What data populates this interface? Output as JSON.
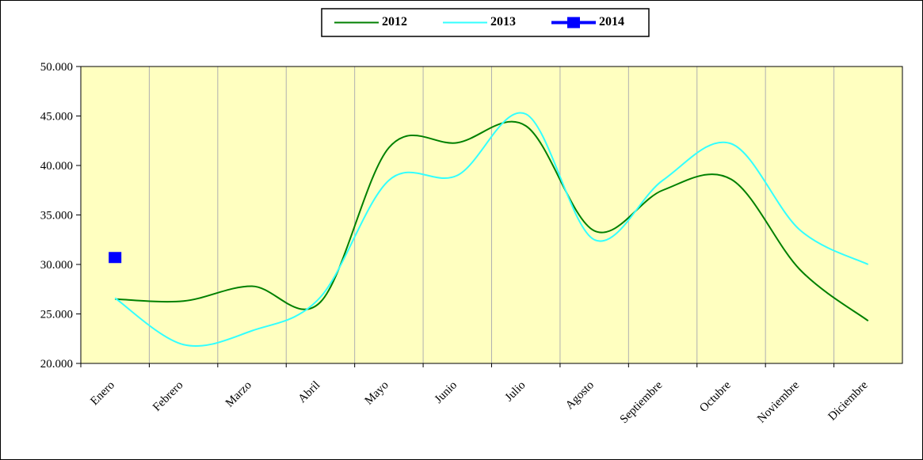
{
  "chart_data": {
    "type": "line",
    "categories": [
      "Enero",
      "Febrero",
      "Marzo",
      "Abril",
      "Mayo",
      "Junio",
      "Julio",
      "Agosto",
      "Septiembre",
      "Octubre",
      "Noviembre",
      "Diciembre"
    ],
    "series": [
      {
        "name": "2012",
        "color": "#008000",
        "values": [
          26500,
          26300,
          27800,
          26200,
          41800,
          42300,
          44000,
          33400,
          37500,
          38600,
          29500,
          24300
        ]
      },
      {
        "name": "2013",
        "color": "#33ffff",
        "values": [
          26600,
          21900,
          23300,
          26700,
          38500,
          39000,
          45200,
          32500,
          38500,
          42200,
          33500,
          30000
        ]
      },
      {
        "name": "2014",
        "color": "#0000ff",
        "values": [
          30700,
          null,
          null,
          null,
          null,
          null,
          null,
          null,
          null,
          null,
          null,
          null
        ]
      }
    ],
    "ylim": [
      20000,
      50000
    ],
    "yticks": [
      {
        "value": 20000,
        "label": "20.000"
      },
      {
        "value": 25000,
        "label": "25.000"
      },
      {
        "value": 30000,
        "label": "30.000"
      },
      {
        "value": 35000,
        "label": "35.000"
      },
      {
        "value": 40000,
        "label": "40.000"
      },
      {
        "value": 45000,
        "label": "45.000"
      },
      {
        "value": 50000,
        "label": "50.000"
      }
    ],
    "grid": true,
    "legend": "top"
  }
}
